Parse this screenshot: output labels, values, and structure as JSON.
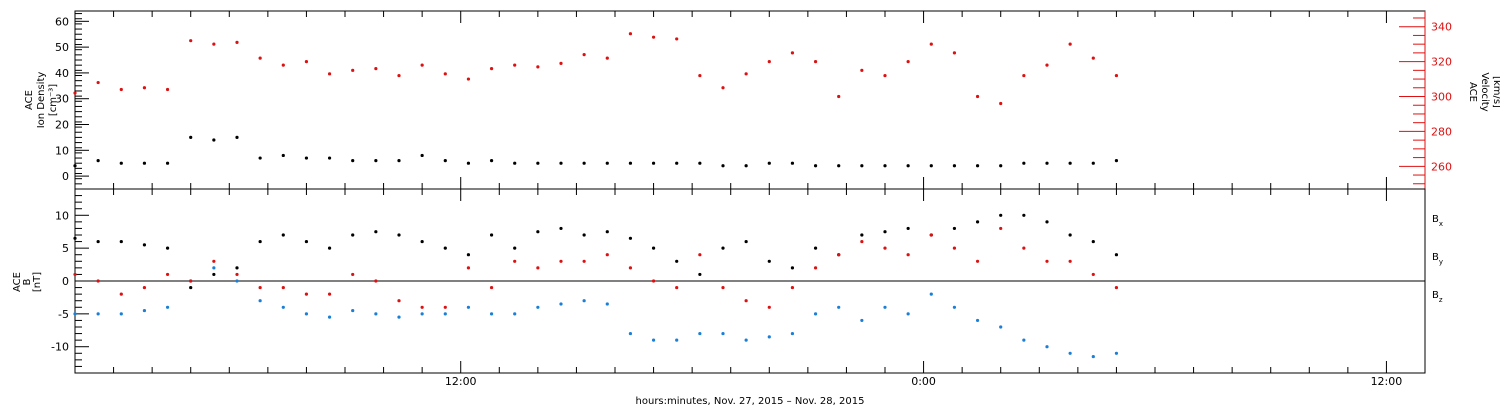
{
  "figure": {
    "xlabel": "hours:minutes, Nov. 27, 2015 – Nov. 28, 2015",
    "x_ticks": [
      "12:00",
      "0:00",
      "12:00"
    ]
  },
  "colors": {
    "black": "#000000",
    "red": "#dd1111",
    "blue": "#1a7fd6"
  },
  "chart_data": [
    {
      "type": "scatter",
      "title": "",
      "ylabel": [
        "ACE",
        "Ion Density",
        "[cm⁻³]"
      ],
      "y2label": [
        "ACE",
        "Velocity",
        "[km/s]"
      ],
      "xlim_hours": [
        2.0,
        37.0
      ],
      "ylim": [
        -5,
        64
      ],
      "y2lim": [
        247,
        349
      ],
      "yticks": [
        0,
        10,
        20,
        30,
        40,
        50,
        60
      ],
      "y2ticks": [
        260,
        280,
        300,
        320,
        340
      ],
      "grid": false,
      "x_hours": [
        2.0,
        2.6,
        3.2,
        3.8,
        4.4,
        5.0,
        5.6,
        6.2,
        6.8,
        7.4,
        8.0,
        8.6,
        9.2,
        9.8,
        10.4,
        11.0,
        11.6,
        12.2,
        12.8,
        13.4,
        14.0,
        14.6,
        15.2,
        15.8,
        16.4,
        17.0,
        17.6,
        18.2,
        18.8,
        19.4,
        20.0,
        20.6,
        21.2,
        21.8,
        22.4,
        23.0,
        23.6,
        24.2,
        24.8,
        25.4,
        26.0,
        26.6,
        27.2,
        27.8,
        28.4,
        29.0
      ],
      "series": [
        {
          "role": "density",
          "axis": "left",
          "color": "black",
          "values": [
            4,
            6,
            5,
            5,
            5,
            15,
            14,
            15,
            7,
            8,
            7,
            7,
            6,
            6,
            6,
            8,
            6,
            5,
            6,
            5,
            5,
            5,
            5,
            5,
            5,
            5,
            5,
            5,
            4,
            4,
            5,
            5,
            4,
            4,
            4,
            4,
            4,
            4,
            4,
            4,
            4,
            5,
            5,
            5,
            5,
            6
          ]
        },
        {
          "role": "velocity",
          "axis": "right",
          "color": "red",
          "values": [
            302,
            308,
            304,
            305,
            304,
            332,
            330,
            331,
            322,
            318,
            320,
            313,
            315,
            316,
            312,
            318,
            313,
            310,
            316,
            318,
            317,
            319,
            324,
            322,
            336,
            334,
            333,
            312,
            305,
            313,
            320,
            325,
            320,
            300,
            315,
            312,
            320,
            330,
            325,
            300,
            296,
            312,
            318,
            330,
            322,
            312
          ]
        }
      ]
    },
    {
      "type": "scatter",
      "title": "",
      "ylabel": [
        "ACE",
        "B",
        "[nT]"
      ],
      "xlim_hours": [
        2.0,
        37.0
      ],
      "ylim": [
        -14,
        14
      ],
      "yticks": [
        -10,
        -5,
        0,
        5,
        10
      ],
      "grid": false,
      "zero_line": true,
      "x_hours": [
        2.0,
        2.6,
        3.2,
        3.8,
        4.4,
        5.0,
        5.6,
        6.2,
        6.8,
        7.4,
        8.0,
        8.6,
        9.2,
        9.8,
        10.4,
        11.0,
        11.6,
        12.2,
        12.8,
        13.4,
        14.0,
        14.6,
        15.2,
        15.8,
        16.4,
        17.0,
        17.6,
        18.2,
        18.8,
        19.4,
        20.0,
        20.6,
        21.2,
        21.8,
        22.4,
        23.0,
        23.6,
        24.2,
        24.8,
        25.4,
        26.0,
        26.6,
        27.2,
        27.8,
        28.4,
        29.0
      ],
      "series": [
        {
          "name": "B",
          "subscript": "x",
          "color": "black",
          "values": [
            6.5,
            6,
            6,
            5.5,
            5,
            -1,
            1,
            2,
            6,
            7,
            6,
            5,
            7,
            7.5,
            7,
            6,
            5,
            4,
            7,
            5,
            7.5,
            8,
            7,
            7.5,
            6.5,
            5,
            3,
            1,
            5,
            6,
            3,
            2,
            5,
            4,
            7,
            7.5,
            8,
            7,
            8,
            9,
            10,
            10,
            9,
            7,
            6,
            4
          ]
        },
        {
          "name": "B",
          "subscript": "y",
          "color": "blue",
          "values": [
            -5,
            -5,
            -5,
            -4.5,
            -4,
            0,
            2,
            0,
            -3,
            -4,
            -5,
            -5.5,
            -4.5,
            -5,
            -5.5,
            -5,
            -5,
            -4,
            -5,
            -5,
            -4,
            -3.5,
            -3,
            -3.5,
            -8,
            -9,
            -9,
            -8,
            -8,
            -9,
            -8.5,
            -8,
            -5,
            -4,
            -6,
            -4,
            -5,
            -2,
            -4,
            -6,
            -7,
            -9,
            -10,
            -11,
            -11.5,
            -11
          ]
        },
        {
          "name": "B",
          "subscript": "z",
          "color": "red",
          "values": [
            1,
            0,
            -2,
            -1,
            1,
            0,
            3,
            1,
            -1,
            -1,
            -2,
            -2,
            1,
            0,
            -3,
            -4,
            -4,
            2,
            -1,
            3,
            2,
            3,
            3,
            4,
            2,
            0,
            -1,
            4,
            -1,
            -3,
            -4,
            -1,
            2,
            4,
            6,
            5,
            4,
            7,
            5,
            3,
            8,
            5,
            3,
            3,
            1,
            -1
          ]
        }
      ]
    }
  ]
}
